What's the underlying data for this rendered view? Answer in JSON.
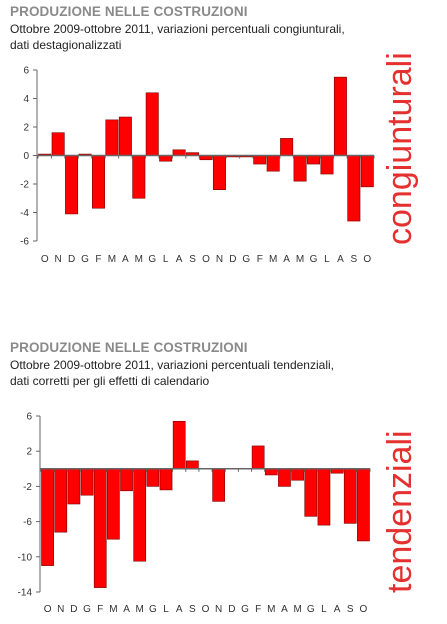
{
  "panels": [
    {
      "title": "PRODUZIONE NELLE COSTRUZIONI",
      "subtitle_line1": "Ottobre 2009-ottobre 2011, variazioni percentuali congiunturali,",
      "subtitle_line2": "dati destagionalizzati",
      "side_label": "congiunturali"
    },
    {
      "title": "PRODUZIONE NELLE COSTRUZIONI",
      "subtitle_line1": "Ottobre 2009-ottobre 2011, variazioni percentuali tendenziali,",
      "subtitle_line2": "dati corretti per gli effetti di calendario",
      "side_label": "tendenziali"
    }
  ],
  "colors": {
    "bar": "#ff0000",
    "bar_edge": "#7a0000",
    "axis": "#666666",
    "side_label": "#e53030"
  },
  "chart_data": [
    {
      "type": "bar",
      "categories": [
        "O",
        "N",
        "D",
        "G",
        "F",
        "M",
        "A",
        "M",
        "G",
        "L",
        "A",
        "S",
        "O",
        "N",
        "D",
        "G",
        "F",
        "M",
        "A",
        "M",
        "G",
        "L",
        "A",
        "S",
        "O"
      ],
      "values": [
        0.1,
        1.6,
        -4.1,
        0.1,
        -3.7,
        2.5,
        2.7,
        -3.0,
        4.4,
        -0.4,
        0.4,
        0.2,
        -0.3,
        -2.4,
        -0.1,
        -0.1,
        -0.6,
        -1.1,
        1.2,
        -1.8,
        -0.6,
        -1.3,
        5.5,
        -4.6,
        -2.2
      ],
      "ylim": [
        -6,
        6
      ],
      "yticks": [
        6,
        4,
        2,
        0,
        -2,
        -4,
        -6
      ],
      "grid": false
    },
    {
      "type": "bar",
      "categories": [
        "O",
        "N",
        "D",
        "G",
        "F",
        "M",
        "A",
        "M",
        "G",
        "L",
        "A",
        "S",
        "O",
        "N",
        "D",
        "G",
        "F",
        "M",
        "A",
        "M",
        "G",
        "L",
        "A",
        "S",
        "O"
      ],
      "values": [
        -11.0,
        -7.2,
        -4.0,
        -3.0,
        -13.5,
        -8.0,
        -2.5,
        -10.5,
        -2.0,
        -2.4,
        5.4,
        0.9,
        0.0,
        -3.7,
        0.0,
        0.0,
        2.6,
        -0.7,
        -2.0,
        -1.3,
        -5.4,
        -6.4,
        -0.5,
        -6.2,
        -8.2
      ],
      "ylim": [
        -14,
        6
      ],
      "yticks": [
        6,
        2,
        -2,
        -6,
        -10,
        -14
      ],
      "grid": false
    }
  ]
}
